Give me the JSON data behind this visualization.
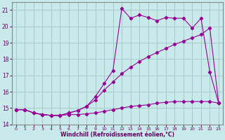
{
  "xlabel": "Windchill (Refroidissement éolien,°C)",
  "bg_color": "#c8eaea",
  "grid_color": "#a8c8c8",
  "line_color": "#990099",
  "xlim": [
    -0.5,
    23.5
  ],
  "ylim": [
    14,
    21.5
  ],
  "yticks": [
    14,
    15,
    16,
    17,
    18,
    19,
    20,
    21
  ],
  "xticks": [
    0,
    1,
    2,
    3,
    4,
    5,
    6,
    7,
    8,
    9,
    10,
    11,
    12,
    13,
    14,
    15,
    16,
    17,
    18,
    19,
    20,
    21,
    22,
    23
  ],
  "line1_x": [
    0,
    1,
    2,
    3,
    4,
    5,
    6,
    7,
    8,
    9,
    10,
    11,
    12,
    13,
    14,
    15,
    16,
    17,
    18,
    19,
    20,
    21,
    22,
    23
  ],
  "line1_y": [
    14.9,
    14.9,
    14.7,
    14.6,
    14.55,
    14.55,
    14.6,
    14.6,
    14.65,
    14.7,
    14.8,
    14.9,
    15.0,
    15.1,
    15.15,
    15.2,
    15.3,
    15.35,
    15.4,
    15.4,
    15.4,
    15.4,
    15.4,
    15.3
  ],
  "line2_x": [
    0,
    1,
    2,
    3,
    4,
    5,
    6,
    7,
    8,
    9,
    10,
    11,
    12,
    13,
    14,
    15,
    16,
    17,
    18,
    19,
    20,
    21,
    22,
    23
  ],
  "line2_y": [
    14.9,
    14.9,
    14.7,
    14.6,
    14.55,
    14.55,
    14.7,
    14.85,
    15.1,
    15.5,
    16.1,
    16.6,
    17.1,
    17.5,
    17.85,
    18.15,
    18.4,
    18.65,
    18.9,
    19.1,
    19.3,
    19.5,
    19.9,
    15.3
  ],
  "line3_x": [
    0,
    1,
    2,
    3,
    4,
    5,
    6,
    7,
    8,
    9,
    10,
    11,
    12,
    13,
    14,
    15,
    16,
    17,
    18,
    19,
    20,
    21,
    22,
    23
  ],
  "line3_y": [
    14.9,
    14.9,
    14.7,
    14.6,
    14.55,
    14.55,
    14.7,
    14.85,
    15.1,
    15.7,
    16.5,
    17.3,
    21.1,
    20.5,
    20.7,
    20.55,
    20.35,
    20.55,
    20.5,
    20.5,
    19.9,
    20.5,
    17.2,
    15.3
  ]
}
